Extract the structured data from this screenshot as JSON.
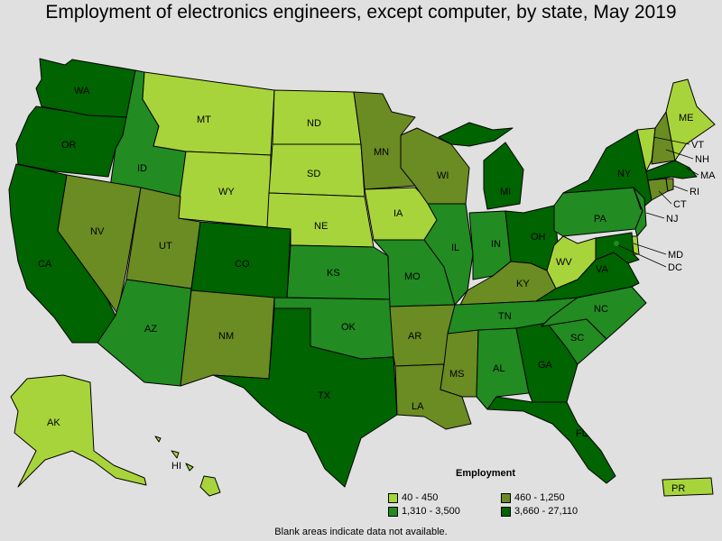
{
  "title": "Employment of electronics engineers, except computer, by state, May 2019",
  "legend": {
    "title": "Employment",
    "bins": [
      {
        "label": "40 - 450",
        "color": "#a8d43b"
      },
      {
        "label": "460 - 1,250",
        "color": "#6b8b23"
      },
      {
        "label": "1,310 - 3,500",
        "color": "#228b22"
      },
      {
        "label": "3,660 - 27,110",
        "color": "#006400"
      }
    ]
  },
  "note": "Blank areas indicate data not available.",
  "states": {
    "WA": 3,
    "OR": 3,
    "CA": 3,
    "ID": 2,
    "NV": 1,
    "MT": 0,
    "WY": 0,
    "UT": 1,
    "AZ": 2,
    "CO": 3,
    "NM": 1,
    "ND": 0,
    "SD": 0,
    "NE": 0,
    "KS": 2,
    "OK": 2,
    "TX": 3,
    "MN": 1,
    "IA": 0,
    "MO": 2,
    "AR": 1,
    "LA": 1,
    "WI": 1,
    "IL": 2,
    "MI": 3,
    "IN": 2,
    "OH": 3,
    "KY": 1,
    "TN": 2,
    "MS": 1,
    "AL": 2,
    "GA": 3,
    "FL": 3,
    "SC": 2,
    "NC": 2,
    "VA": 3,
    "WV": 0,
    "PA": 2,
    "NY": 3,
    "VT": 0,
    "NH": 1,
    "ME": 0,
    "MA": 3,
    "RI": 1,
    "CT": 1,
    "NJ": 2,
    "DE": 0,
    "MD": 3,
    "DC": 2,
    "AK": 0,
    "HI": 0,
    "PR": 0
  },
  "labels": [
    "WA",
    "OR",
    "CA",
    "ID",
    "NV",
    "MT",
    "WY",
    "UT",
    "AZ",
    "CO",
    "NM",
    "ND",
    "SD",
    "NE",
    "KS",
    "OK",
    "TX",
    "MN",
    "IA",
    "MO",
    "AR",
    "LA",
    "WI",
    "IL",
    "MI",
    "IN",
    "OH",
    "KY",
    "TN",
    "MS",
    "AL",
    "GA",
    "FL",
    "SC",
    "NC",
    "VA",
    "WV",
    "PA",
    "NY",
    "VT",
    "NH",
    "ME",
    "MA",
    "RI",
    "CT",
    "NJ",
    "MD",
    "DC",
    "AK",
    "HI",
    "PR"
  ]
}
